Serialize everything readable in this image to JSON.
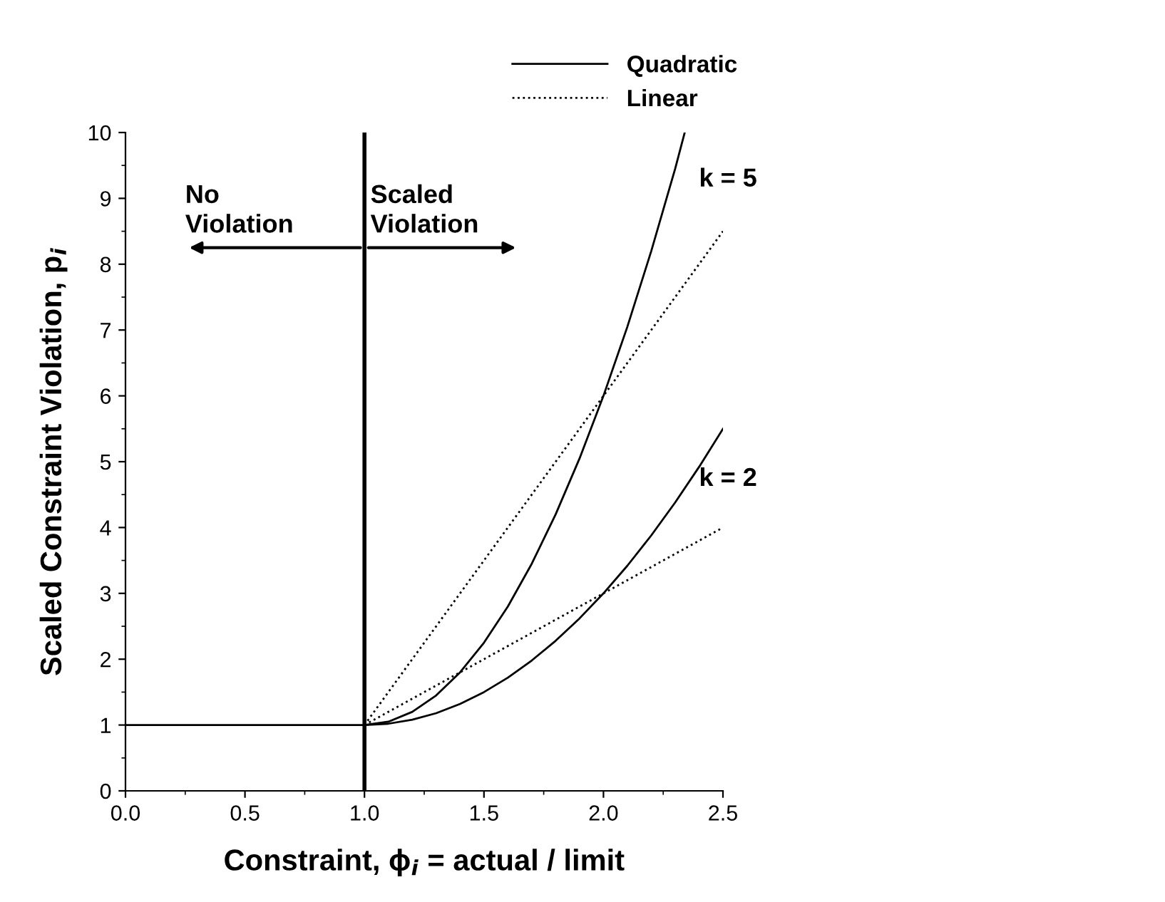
{
  "chart_data": {
    "type": "line",
    "xlabel": "Constraint, ϕ$_{i}$ = actual / limit",
    "ylabel": "Scaled Constraint Violation, p$_{i}$",
    "xlim": [
      0,
      2.5
    ],
    "xticks": [
      {
        "value": 0,
        "label": "0.0"
      },
      0.5,
      {
        "value": 1,
        "label": "1.0"
      },
      1.5,
      {
        "value": 2,
        "label": "2.0"
      },
      2.5
    ],
    "ylim": [
      0,
      10
    ],
    "yticks": [
      0,
      1,
      2,
      3,
      4,
      5,
      6,
      7,
      8,
      9,
      10
    ],
    "grid": false,
    "legend": "top right",
    "marker": "none",
    "series": [
      {
        "name": "Quadratic",
        "color": "#000000",
        "line_style": "solid",
        "x": [
          0,
          1,
          1.1,
          1.2,
          1.3,
          1.4,
          1.5,
          1.6,
          1.7,
          1.8,
          1.9,
          2.0,
          2.1,
          2.2,
          2.3,
          2.4,
          2.5
        ],
        "values": [
          1,
          1,
          1.02,
          1.08,
          1.18,
          1.32,
          1.5,
          1.72,
          1.98,
          2.28,
          2.62,
          3,
          3.42,
          3.88,
          4.38,
          4.92,
          5.5
        ]
      },
      {
        "color": "#000000",
        "line_style": "solid",
        "x": [
          1,
          1.1,
          1.2,
          1.3,
          1.4,
          1.5,
          1.6,
          1.7,
          1.8,
          1.9,
          2.0,
          2.1,
          2.2,
          2.3,
          2.34
        ],
        "values": [
          1,
          1.05,
          1.2,
          1.45,
          1.8,
          2.25,
          2.8,
          3.45,
          4.2,
          5.05,
          6,
          7.05,
          8.2,
          9.45,
          10
        ]
      },
      {
        "name": "Linear",
        "color": "#000000",
        "line_style": "dotted",
        "x": [
          1,
          2.5
        ],
        "values": [
          1,
          4
        ]
      },
      {
        "color": "#000000",
        "line_style": "dotted",
        "x": [
          1,
          2.5
        ],
        "values": [
          1,
          8.5
        ]
      }
    ],
    "ref_lines": [
      {
        "axis": "x",
        "value": 1,
        "color": "#000000",
        "line_style": "solid"
      }
    ],
    "annotations": [
      "No\nViolation",
      "Scaled\nViolation",
      "k = 5",
      "k = 2"
    ]
  }
}
